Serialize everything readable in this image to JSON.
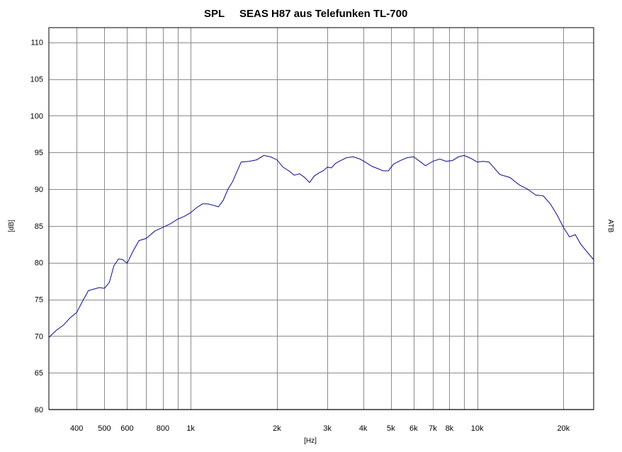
{
  "chart_data": {
    "type": "line",
    "title_left": "SPL",
    "title": "SEAS H87 aus Telefunken TL-700",
    "xlabel": "[Hz]",
    "ylabel": "[dB]",
    "right_label": "ATB",
    "x_scale": "log",
    "xlim": [
      320,
      25500
    ],
    "ylim": [
      60,
      112
    ],
    "grid": true,
    "legend": "none",
    "x_ticks": [
      {
        "value": 400,
        "label": "400"
      },
      {
        "value": 500,
        "label": "500"
      },
      {
        "value": 600,
        "label": "600"
      },
      {
        "value": 800,
        "label": "800"
      },
      {
        "value": 1000,
        "label": "1k"
      },
      {
        "value": 2000,
        "label": "2k"
      },
      {
        "value": 3000,
        "label": "3k"
      },
      {
        "value": 4000,
        "label": "4k"
      },
      {
        "value": 5000,
        "label": "5k"
      },
      {
        "value": 6000,
        "label": "6k"
      },
      {
        "value": 7000,
        "label": "7k"
      },
      {
        "value": 8000,
        "label": "8k"
      },
      {
        "value": 10000,
        "label": "10k"
      },
      {
        "value": 20000,
        "label": "20k"
      }
    ],
    "x_gridlines": [
      400,
      500,
      600,
      700,
      800,
      900,
      1000,
      2000,
      3000,
      4000,
      5000,
      6000,
      7000,
      8000,
      9000,
      10000,
      20000
    ],
    "y_ticks": [
      60,
      65,
      70,
      75,
      80,
      85,
      90,
      95,
      100,
      105,
      110
    ],
    "series": [
      {
        "color": "#0a0a8c",
        "x": [
          320,
          340,
          360,
          380,
          400,
          420,
          440,
          460,
          480,
          500,
          520,
          540,
          560,
          580,
          600,
          630,
          660,
          700,
          750,
          800,
          850,
          900,
          950,
          1000,
          1050,
          1100,
          1150,
          1200,
          1250,
          1300,
          1350,
          1400,
          1500,
          1600,
          1700,
          1800,
          1900,
          2000,
          2100,
          2200,
          2300,
          2400,
          2500,
          2600,
          2700,
          2800,
          2900,
          3000,
          3100,
          3200,
          3300,
          3500,
          3700,
          3900,
          4100,
          4300,
          4500,
          4700,
          4900,
          5100,
          5400,
          5700,
          6000,
          6300,
          6600,
          7000,
          7400,
          7800,
          8200,
          8600,
          9000,
          9500,
          10000,
          10500,
          11000,
          12000,
          13000,
          14000,
          15000,
          16000,
          17000,
          18000,
          19000,
          20000,
          21000,
          22000,
          23000,
          24000,
          25500
        ],
        "y": [
          69.8,
          70.8,
          71.5,
          72.5,
          73.2,
          74.8,
          76.2,
          76.4,
          76.6,
          76.5,
          77.3,
          79.6,
          80.5,
          80.4,
          79.9,
          81.6,
          83.0,
          83.3,
          84.3,
          84.8,
          85.3,
          85.9,
          86.3,
          86.8,
          87.5,
          88.0,
          88.0,
          87.8,
          87.6,
          88.5,
          90.0,
          91.0,
          93.7,
          93.8,
          94.0,
          94.6,
          94.4,
          94.0,
          93.0,
          92.5,
          91.9,
          92.1,
          91.6,
          90.9,
          91.8,
          92.2,
          92.5,
          93.0,
          92.9,
          93.5,
          93.8,
          94.3,
          94.4,
          94.1,
          93.6,
          93.1,
          92.8,
          92.5,
          92.5,
          93.4,
          93.9,
          94.3,
          94.4,
          93.8,
          93.2,
          93.8,
          94.1,
          93.8,
          93.9,
          94.4,
          94.6,
          94.2,
          93.7,
          93.8,
          93.7,
          92.0,
          91.6,
          90.6,
          90.0,
          89.2,
          89.1,
          88.0,
          86.5,
          84.8,
          83.5,
          83.8,
          82.5,
          81.6,
          80.4
        ]
      }
    ]
  }
}
